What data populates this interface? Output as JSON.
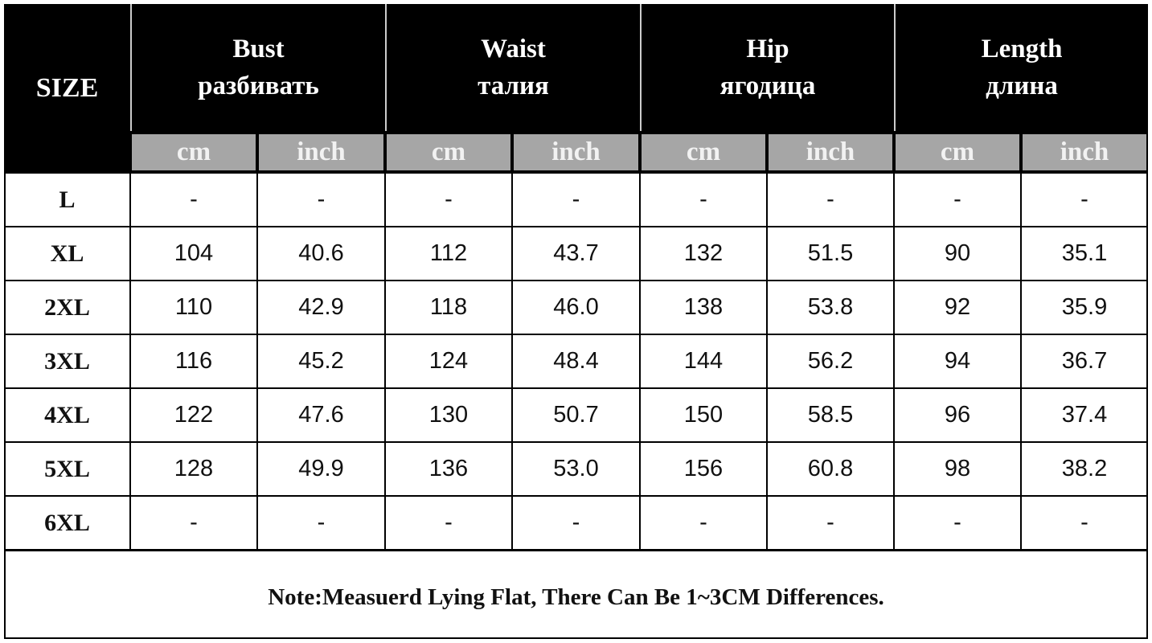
{
  "table": {
    "size_label": "SIZE",
    "groups": [
      {
        "en": "Bust",
        "ru": "разбивать"
      },
      {
        "en": "Waist",
        "ru": "талия"
      },
      {
        "en": "Hip",
        "ru": "ягодица"
      },
      {
        "en": "Length",
        "ru": "длина"
      }
    ],
    "units": [
      "cm",
      "inch",
      "cm",
      "inch",
      "cm",
      "inch",
      "cm",
      "inch"
    ],
    "rows": [
      [
        "L",
        "-",
        "-",
        "-",
        "-",
        "-",
        "-",
        "-",
        "-"
      ],
      [
        "XL",
        "104",
        "40.6",
        "112",
        "43.7",
        "132",
        "51.5",
        "90",
        "35.1"
      ],
      [
        "2XL",
        "110",
        "42.9",
        "118",
        "46.0",
        "138",
        "53.8",
        "92",
        "35.9"
      ],
      [
        "3XL",
        "116",
        "45.2",
        "124",
        "48.4",
        "144",
        "56.2",
        "94",
        "36.7"
      ],
      [
        "4XL",
        "122",
        "47.6",
        "130",
        "50.7",
        "150",
        "58.5",
        "96",
        "37.4"
      ],
      [
        "5XL",
        "128",
        "49.9",
        "136",
        "53.0",
        "156",
        "60.8",
        "98",
        "38.2"
      ],
      [
        "6XL",
        "-",
        "-",
        "-",
        "-",
        "-",
        "-",
        "-",
        "-"
      ]
    ],
    "note": "Note:Measuerd Lying Flat, There Can Be 1~3CM Differences."
  }
}
